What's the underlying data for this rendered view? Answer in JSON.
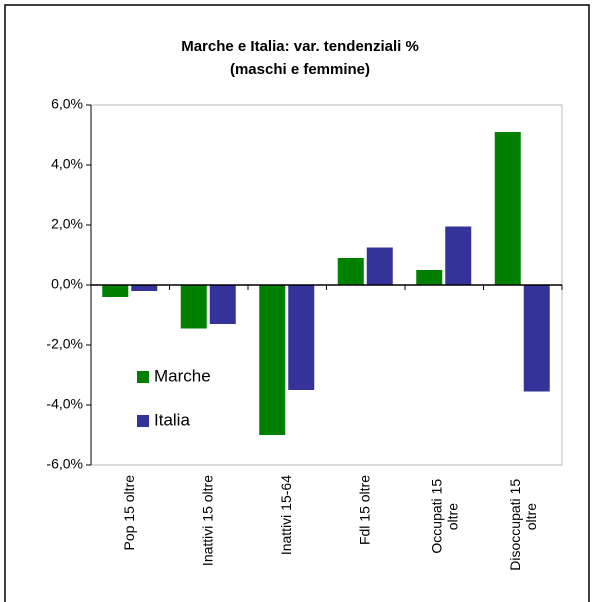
{
  "chart_data": {
    "type": "bar",
    "title": [
      "Marche e Italia: var. tendenziali %",
      "(maschi e femmine)"
    ],
    "categories": [
      "Pop 15 oltre",
      "Inattivi 15 oltre",
      "Inattivi 15-64",
      "Fdl 15 oltre",
      "Occupati 15 oltre",
      "Disoccupati 15 oltre"
    ],
    "series": [
      {
        "name": "Marche",
        "color": "#008000",
        "values": [
          -0.4,
          -1.45,
          -5.0,
          0.9,
          0.5,
          5.1
        ]
      },
      {
        "name": "Italia",
        "color": "#333399",
        "values": [
          -0.2,
          -1.3,
          -3.5,
          1.25,
          1.95,
          -3.55
        ]
      }
    ],
    "ylim": [
      -6,
      6
    ],
    "yticks": [
      {
        "value": -6,
        "label": "-6,0%"
      },
      {
        "value": -4,
        "label": "-4,0%"
      },
      {
        "value": -2,
        "label": "-2,0%"
      },
      {
        "value": 0,
        "label": "0,0%"
      },
      {
        "value": 2,
        "label": "2,0%"
      },
      {
        "value": 4,
        "label": "4,0%"
      },
      {
        "value": 6,
        "label": "6,0%"
      }
    ]
  }
}
